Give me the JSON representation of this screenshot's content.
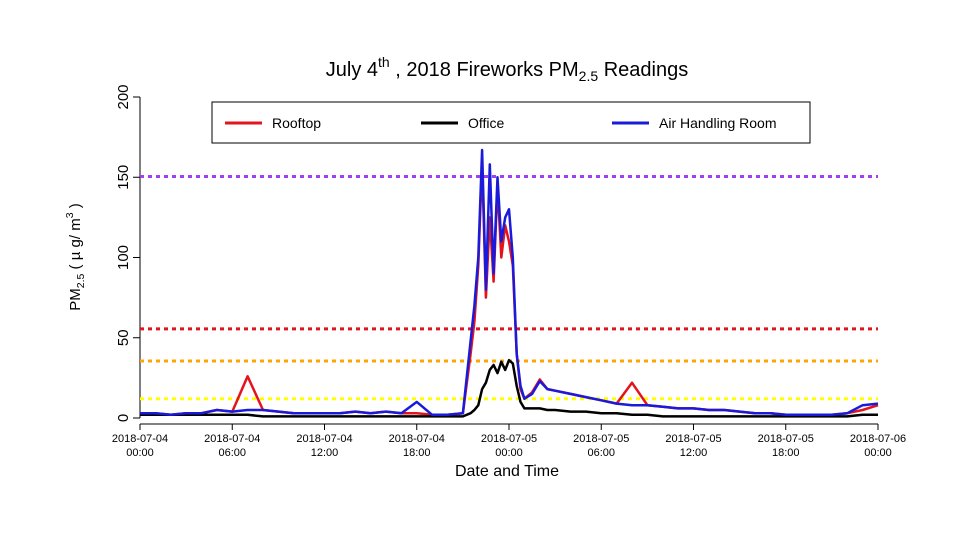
{
  "chart_data": {
    "type": "line",
    "title": [
      "July 4",
      "th",
      " , 2018 Fireworks PM",
      "2.5",
      " Readings"
    ],
    "x_label": "Date and Time",
    "y_label": [
      "PM",
      "2.5",
      " ( µ g/ m",
      "3",
      " )"
    ],
    "x": [
      "2018-07-04 00:00",
      "2018-07-04 01:00",
      "2018-07-04 02:00",
      "2018-07-04 03:00",
      "2018-07-04 04:00",
      "2018-07-04 05:00",
      "2018-07-04 06:00",
      "2018-07-04 07:00",
      "2018-07-04 08:00",
      "2018-07-04 09:00",
      "2018-07-04 10:00",
      "2018-07-04 11:00",
      "2018-07-04 12:00",
      "2018-07-04 13:00",
      "2018-07-04 14:00",
      "2018-07-04 15:00",
      "2018-07-04 16:00",
      "2018-07-04 17:00",
      "2018-07-04 18:00",
      "2018-07-04 19:00",
      "2018-07-04 20:00",
      "2018-07-04 21:00",
      "2018-07-04 21:30",
      "2018-07-04 21:45",
      "2018-07-04 22:00",
      "2018-07-04 22:15",
      "2018-07-04 22:30",
      "2018-07-04 22:45",
      "2018-07-04 23:00",
      "2018-07-04 23:15",
      "2018-07-04 23:30",
      "2018-07-04 23:45",
      "2018-07-05 00:00",
      "2018-07-05 00:15",
      "2018-07-05 00:30",
      "2018-07-05 00:45",
      "2018-07-05 01:00",
      "2018-07-05 01:30",
      "2018-07-05 02:00",
      "2018-07-05 02:30",
      "2018-07-05 03:00",
      "2018-07-05 04:00",
      "2018-07-05 05:00",
      "2018-07-05 06:00",
      "2018-07-05 07:00",
      "2018-07-05 08:00",
      "2018-07-05 09:00",
      "2018-07-05 10:00",
      "2018-07-05 11:00",
      "2018-07-05 12:00",
      "2018-07-05 13:00",
      "2018-07-05 14:00",
      "2018-07-05 15:00",
      "2018-07-05 16:00",
      "2018-07-05 17:00",
      "2018-07-05 18:00",
      "2018-07-05 19:00",
      "2018-07-05 20:00",
      "2018-07-05 21:00",
      "2018-07-05 22:00",
      "2018-07-05 23:00",
      "2018-07-06 00:00"
    ],
    "series": [
      {
        "name": "Rooftop",
        "color": "#e3141c",
        "values": [
          3,
          3,
          2,
          3,
          3,
          5,
          4,
          26,
          5,
          4,
          3,
          3,
          3,
          3,
          4,
          3,
          4,
          3,
          3,
          2,
          2,
          3,
          40,
          60,
          95,
          160,
          75,
          125,
          85,
          145,
          100,
          120,
          110,
          95,
          40,
          18,
          12,
          16,
          24,
          18,
          17,
          15,
          13,
          11,
          9,
          22,
          8,
          7,
          6,
          6,
          5,
          5,
          4,
          3,
          3,
          2,
          2,
          2,
          2,
          3,
          5,
          8
        ]
      },
      {
        "name": "Office",
        "color": "#000000",
        "values": [
          2,
          2,
          2,
          2,
          2,
          2,
          2,
          2,
          1,
          1,
          1,
          1,
          1,
          1,
          1,
          1,
          1,
          1,
          1,
          1,
          1,
          1,
          3,
          5,
          8,
          18,
          22,
          30,
          33,
          28,
          35,
          30,
          36,
          34,
          20,
          10,
          6,
          6,
          6,
          5,
          5,
          4,
          4,
          3,
          3,
          2,
          2,
          1,
          1,
          1,
          1,
          1,
          1,
          1,
          1,
          1,
          1,
          1,
          1,
          1,
          2,
          2
        ]
      },
      {
        "name": "Air Handling Room",
        "color": "#1a1adb",
        "values": [
          3,
          3,
          2,
          3,
          3,
          5,
          4,
          5,
          5,
          4,
          3,
          3,
          3,
          3,
          4,
          3,
          4,
          3,
          10,
          2,
          2,
          3,
          48,
          70,
          100,
          167,
          80,
          158,
          90,
          150,
          110,
          125,
          130,
          100,
          40,
          20,
          12,
          15,
          23,
          18,
          17,
          15,
          13,
          11,
          9,
          8,
          8,
          7,
          6,
          6,
          5,
          5,
          4,
          3,
          3,
          2,
          2,
          2,
          2,
          3,
          8,
          9
        ]
      }
    ],
    "reference_lines": [
      {
        "value": 12,
        "color": "#ffff00"
      },
      {
        "value": 35.5,
        "color": "#ffa500"
      },
      {
        "value": 55.5,
        "color": "#e3141c"
      },
      {
        "value": 150.5,
        "color": "#a040f0"
      }
    ],
    "xlim": [
      "2018-07-04 00:00",
      "2018-07-06 00:00"
    ],
    "xticks": [
      "2018-07-04 00:00",
      "2018-07-04 06:00",
      "2018-07-04 12:00",
      "2018-07-04 18:00",
      "2018-07-05 00:00",
      "2018-07-05 06:00",
      "2018-07-05 12:00",
      "2018-07-05 18:00",
      "2018-07-06 00:00"
    ],
    "ylim": [
      0,
      200
    ],
    "yticks": [
      0,
      50,
      100,
      150,
      200
    ],
    "grid": false,
    "legend": "top"
  }
}
